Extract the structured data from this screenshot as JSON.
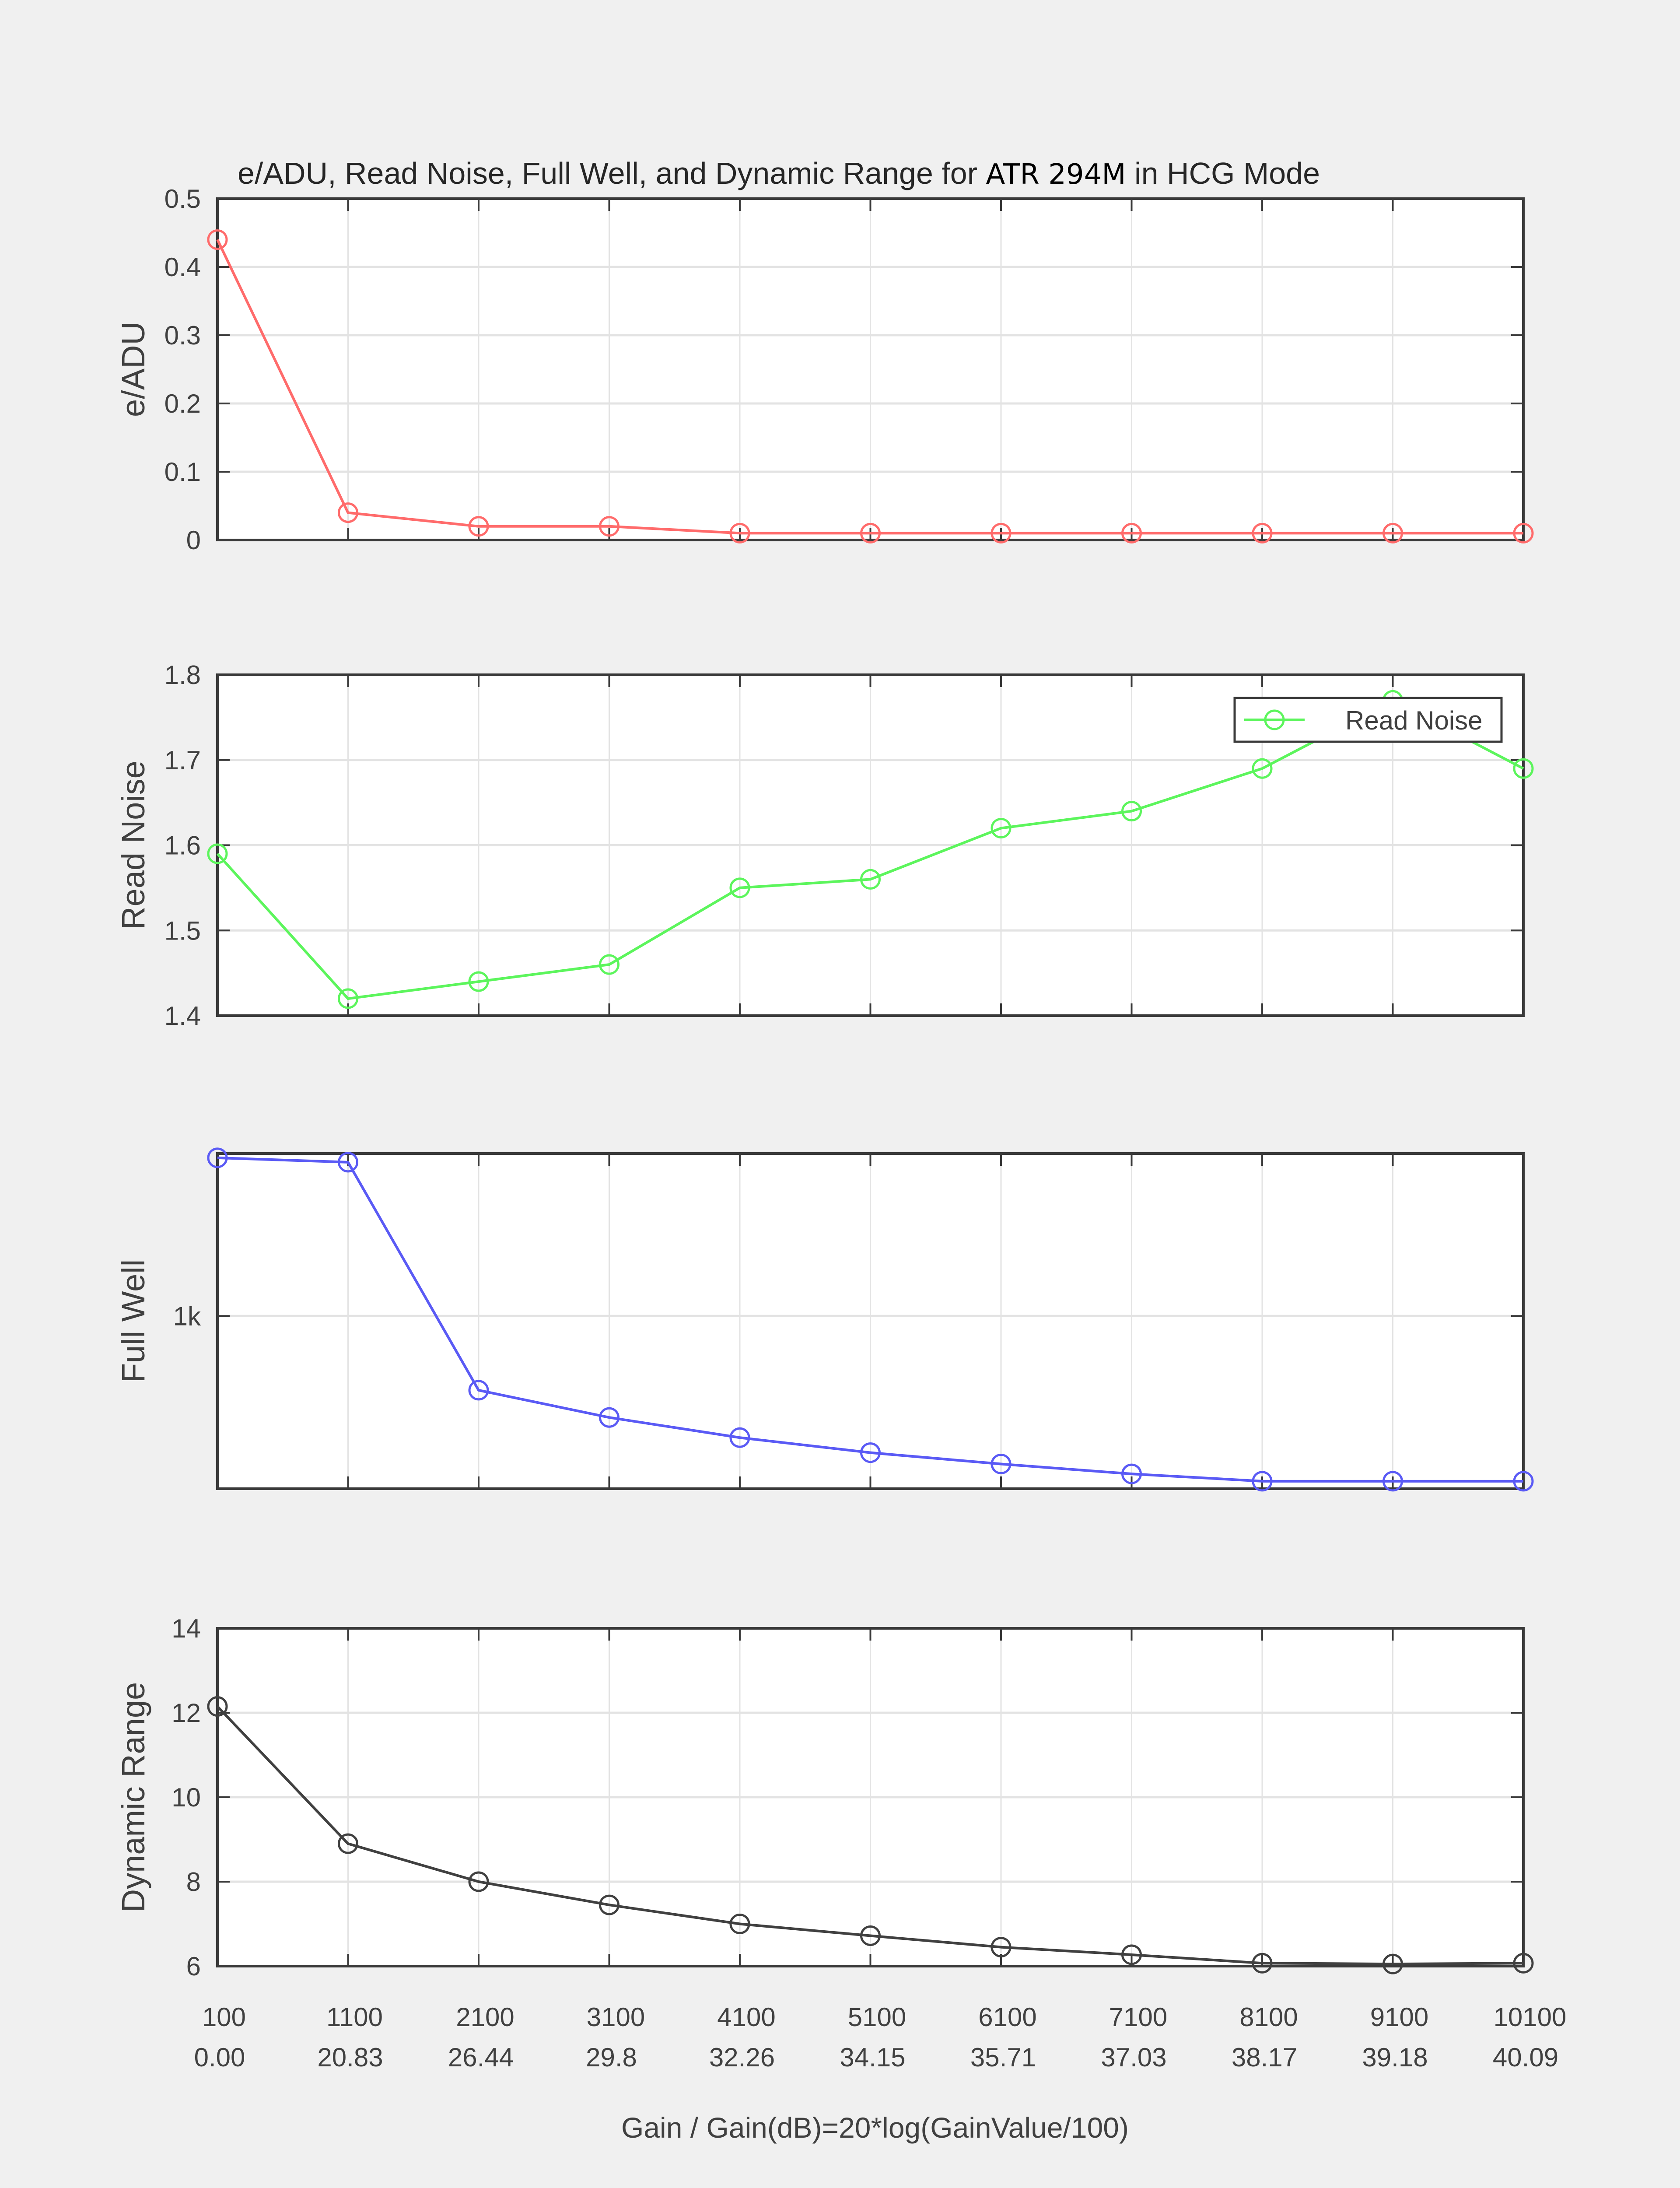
{
  "chart_data": [
    {
      "type": "line",
      "title_parts": [
        "e/ADU, Read Noise, Full Well, and Dynamic Range for ",
        "ATR 294M",
        " in HCG Mode"
      ],
      "ylabel": "e/ADU",
      "x": [
        100,
        1100,
        2100,
        3100,
        4100,
        5100,
        6100,
        7100,
        8100,
        9100,
        10100
      ],
      "values": [
        0.44,
        0.04,
        0.02,
        0.02,
        0.01,
        0.01,
        0.01,
        0.01,
        0.01,
        0.01,
        0.01
      ],
      "ylim": [
        0,
        0.5
      ],
      "yscale": "linear",
      "yticks": [
        0,
        0.1,
        0.2,
        0.3,
        0.4,
        0.5
      ],
      "ytick_labels": [
        "0",
        "0.1",
        "0.2",
        "0.3",
        "0.4",
        "0.5"
      ],
      "color": "#ff6b6b",
      "grid": true
    },
    {
      "type": "line",
      "ylabel": "Read Noise",
      "x": [
        100,
        1100,
        2100,
        3100,
        4100,
        5100,
        6100,
        7100,
        8100,
        9100,
        10100
      ],
      "values": [
        1.59,
        1.42,
        1.44,
        1.46,
        1.55,
        1.56,
        1.62,
        1.64,
        1.69,
        1.77,
        1.69
      ],
      "ylim": [
        1.4,
        1.8
      ],
      "yscale": "linear",
      "yticks": [
        1.4,
        1.5,
        1.6,
        1.7,
        1.8
      ],
      "ytick_labels": [
        "1.4",
        "1.5",
        "1.6",
        "1.7",
        "1.8"
      ],
      "color": "#5cf55c",
      "legend": {
        "entries": [
          "Read Noise"
        ],
        "placement": "top-right"
      },
      "grid": true
    },
    {
      "type": "line",
      "ylabel": "Full Well",
      "x": [
        100,
        1100,
        2100,
        3100,
        4100,
        5100,
        6100,
        7100,
        8100,
        9100,
        10100
      ],
      "values": [
        1820,
        1790,
        755,
        681,
        631,
        596,
        571,
        550,
        535,
        535,
        535
      ],
      "ylim": [
        520,
        1850
      ],
      "yscale": "log",
      "yticks": [
        1000
      ],
      "ytick_labels": [
        "1k"
      ],
      "color": "#5a5af5",
      "grid": true
    },
    {
      "type": "line",
      "ylabel": "Dynamic Range",
      "x": [
        100,
        1100,
        2100,
        3100,
        4100,
        5100,
        6100,
        7100,
        8100,
        9100,
        10100
      ],
      "values": [
        12.15,
        8.9,
        8.0,
        7.45,
        7.0,
        6.72,
        6.45,
        6.27,
        6.07,
        6.05,
        6.07
      ],
      "ylim": [
        6,
        14
      ],
      "yscale": "linear",
      "yticks": [
        6,
        8,
        10,
        12,
        14
      ],
      "ytick_labels": [
        "6",
        "8",
        "10",
        "12",
        "14"
      ],
      "color": "#404040",
      "grid": true,
      "xtick_labels": [
        "100",
        "1100",
        "2100",
        "3100",
        "4100",
        "5100",
        "6100",
        "7100",
        "8100",
        "9100",
        "10100"
      ],
      "xtick_labels_db": [
        "0.00",
        "20.83",
        "26.44",
        "29.8",
        "32.26",
        "34.15",
        "35.71",
        "37.03",
        "38.17",
        "39.18",
        "40.09"
      ],
      "xlabel": "Gain / Gain(dB)=20*log(GainValue/100)"
    }
  ]
}
